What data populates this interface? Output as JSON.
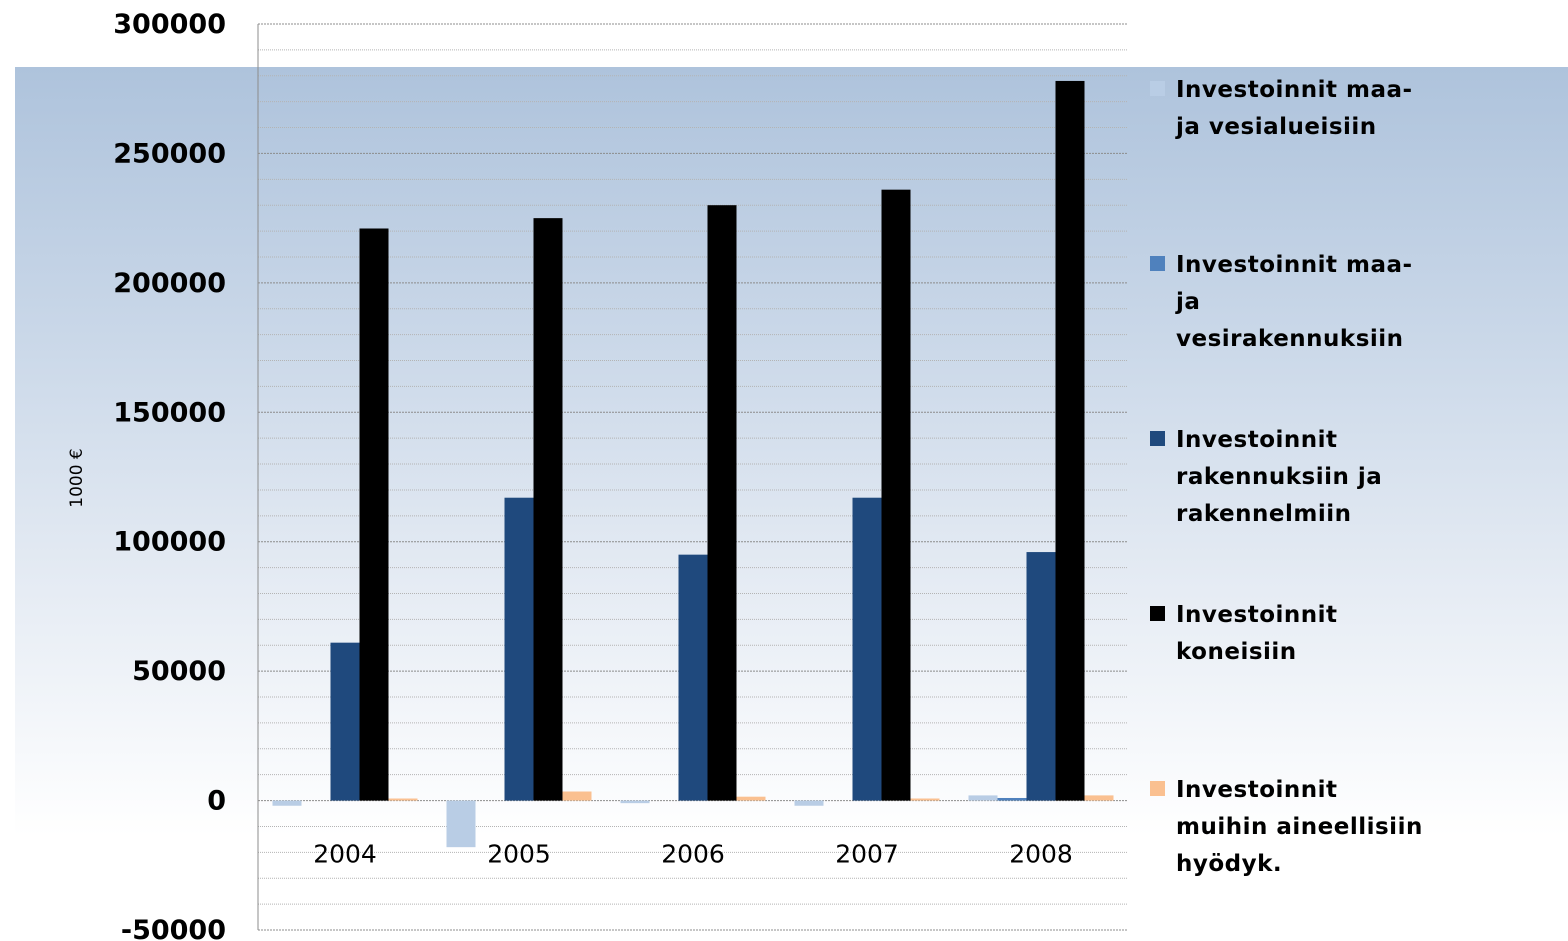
{
  "chart_data": {
    "type": "bar",
    "ylabel": "1000 €",
    "ylim": [
      -50000,
      300000
    ],
    "yticks": [
      "300000",
      "250000",
      "200000",
      "150000",
      "100000",
      "50000",
      "0",
      "-50000"
    ],
    "ytick_values": [
      300000,
      250000,
      200000,
      150000,
      100000,
      50000,
      0,
      -50000
    ],
    "minor_gridlines": true,
    "legend_position": "right",
    "categories": [
      "2004",
      "2005",
      "2006",
      "2007",
      "2008"
    ],
    "series": [
      {
        "name": "Investoinnit maa- ja vesialueisiin",
        "color": "#b9cde5",
        "values": [
          -2000,
          -18000,
          -1000,
          -2000,
          2000
        ]
      },
      {
        "name": "Investoinnit maa- ja vesirakennuksiin",
        "color": "#4f81bd",
        "values": [
          0,
          0,
          0,
          0,
          1000
        ]
      },
      {
        "name": "Investoinnit rakennuksiin ja rakennelmiin",
        "color": "#1f497d",
        "values": [
          61000,
          117000,
          95000,
          117000,
          96000
        ]
      },
      {
        "name": "Investoinnit koneisiin",
        "color": "#000000",
        "values": [
          221000,
          225000,
          230000,
          236000,
          278000
        ]
      },
      {
        "name": "Investoinnit muihin aineellisiin hyödyk.",
        "color": "#fac090",
        "values": [
          800,
          3500,
          1500,
          800,
          2000
        ]
      }
    ]
  },
  "legend": {
    "items": [
      {
        "label": "Investoinnit maa-\nja vesialueisiin"
      },
      {
        "label": "Investoinnit maa-\nja\nvesirakennuksiin"
      },
      {
        "label": "Investoinnit\nrakennuksiin ja\nrakennelmiin"
      },
      {
        "label": "Investoinnit\nkoneisiin"
      },
      {
        "label": "Investoinnit\nmuihin aineellisiin\nhyödyk."
      }
    ]
  }
}
